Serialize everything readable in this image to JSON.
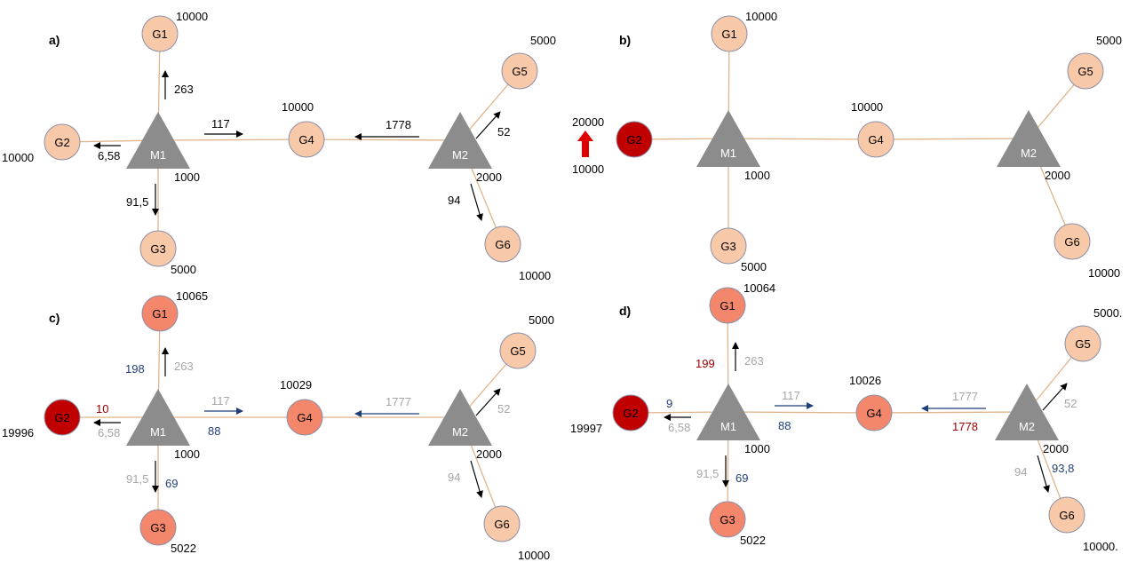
{
  "colors": {
    "edge": "#e0b48a",
    "node_stroke": "#8a8fa8",
    "triangle": "#8c8c8c",
    "pale": "#f8c9a8",
    "medium": "#f4876b",
    "dark": "#c00000",
    "black": "#000000",
    "gray": "#a6a6a6",
    "blue": "#1f3f7a",
    "red": "#a00000",
    "up_arrow": "#e00000"
  },
  "panels": {
    "a": {
      "label": "a)",
      "nodes": {
        "G1": {
          "label": "G1",
          "value": "10000",
          "fill": "pale"
        },
        "G2": {
          "label": "G2",
          "value": "10000",
          "fill": "pale"
        },
        "G3": {
          "label": "G3",
          "value": "5000",
          "fill": "pale"
        },
        "G4": {
          "label": "G4",
          "value": "10000",
          "fill": "pale"
        },
        "G5": {
          "label": "G5",
          "value": "5000",
          "fill": "pale"
        },
        "G6": {
          "label": "G6",
          "value": "10000",
          "fill": "pale"
        },
        "M1": {
          "label": "M1",
          "value": "1000"
        },
        "M2": {
          "label": "M2",
          "value": "2000"
        }
      },
      "flows": {
        "m1_g1": {
          "value": "263",
          "color": "black"
        },
        "m1_g2": {
          "value": "6,58",
          "color": "black"
        },
        "m1_g3": {
          "value": "91,5",
          "color": "black"
        },
        "m1_g4": {
          "value": "117",
          "color": "black"
        },
        "m2_g4": {
          "value": "1778",
          "color": "black"
        },
        "m2_g5": {
          "value": "52",
          "color": "black"
        },
        "m2_g6": {
          "value": "94",
          "color": "black"
        }
      }
    },
    "b": {
      "label": "b)",
      "nodes": {
        "G1": {
          "label": "G1",
          "value": "10000",
          "fill": "pale"
        },
        "G2": {
          "label": "G2",
          "value_old": "10000",
          "value_new": "20000",
          "fill": "dark"
        },
        "G3": {
          "label": "G3",
          "value": "5000",
          "fill": "pale"
        },
        "G4": {
          "label": "G4",
          "value": "10000",
          "fill": "pale"
        },
        "G5": {
          "label": "G5",
          "value": "5000",
          "fill": "pale"
        },
        "G6": {
          "label": "G6",
          "value": "10000",
          "fill": "pale"
        },
        "M1": {
          "label": "M1",
          "value": "1000"
        },
        "M2": {
          "label": "M2",
          "value": "2000"
        }
      }
    },
    "c": {
      "label": "c)",
      "nodes": {
        "G1": {
          "label": "G1",
          "value": "10065",
          "fill": "medium"
        },
        "G2": {
          "label": "G2",
          "value": "19996",
          "fill": "dark"
        },
        "G3": {
          "label": "G3",
          "value": "5022",
          "fill": "medium"
        },
        "G4": {
          "label": "G4",
          "value": "10029",
          "fill": "medium"
        },
        "G5": {
          "label": "G5",
          "value": "5000",
          "fill": "pale"
        },
        "G6": {
          "label": "G6",
          "value": "10000",
          "fill": "pale"
        },
        "M1": {
          "label": "M1",
          "value": "1000"
        },
        "M2": {
          "label": "M2",
          "value": "2000"
        }
      },
      "flows": {
        "m1_g1": {
          "value": "263",
          "color": "gray",
          "reverse": "198",
          "reverse_color": "blue"
        },
        "m1_g2": {
          "value": "6,58",
          "color": "gray",
          "reverse": "10",
          "reverse_color": "red"
        },
        "m1_g3": {
          "value": "91,5",
          "color": "gray",
          "reverse": "69",
          "reverse_color": "blue"
        },
        "m1_g4": {
          "value": "117",
          "color": "gray",
          "reverse": "88",
          "reverse_color": "blue"
        },
        "m2_g4": {
          "value": "1777",
          "color": "gray"
        },
        "m2_g5": {
          "value": "52",
          "color": "gray"
        },
        "m2_g6": {
          "value": "94",
          "color": "gray"
        }
      }
    },
    "d": {
      "label": "d)",
      "nodes": {
        "G1": {
          "label": "G1",
          "value": "10064",
          "fill": "medium"
        },
        "G2": {
          "label": "G2",
          "value": "19997",
          "fill": "dark"
        },
        "G3": {
          "label": "G3",
          "value": "5022",
          "fill": "medium"
        },
        "G4": {
          "label": "G4",
          "value": "10026",
          "fill": "medium"
        },
        "G5": {
          "label": "G5",
          "value": "5000.",
          "fill": "pale"
        },
        "G6": {
          "label": "G6",
          "value": "10000.",
          "fill": "pale"
        },
        "M1": {
          "label": "M1",
          "value": "1000"
        },
        "M2": {
          "label": "M2",
          "value": "2000"
        }
      },
      "flows": {
        "m1_g1": {
          "value": "263",
          "color": "gray",
          "reverse": "199",
          "reverse_color": "red"
        },
        "m1_g2": {
          "value": "6,58",
          "color": "gray",
          "reverse": "9",
          "reverse_color": "blue"
        },
        "m1_g3": {
          "value": "91,5",
          "color": "gray",
          "reverse": "69",
          "reverse_color": "blue"
        },
        "m1_g4": {
          "value": "117",
          "color": "gray",
          "reverse": "88",
          "reverse_color": "blue"
        },
        "m2_g4": {
          "value": "1777",
          "color": "gray",
          "reverse": "1778",
          "reverse_color": "red"
        },
        "m2_g5": {
          "value": "52",
          "color": "gray"
        },
        "m2_g6": {
          "value": "94",
          "color": "gray",
          "reverse": "93,8",
          "reverse_color": "blue"
        }
      }
    }
  }
}
